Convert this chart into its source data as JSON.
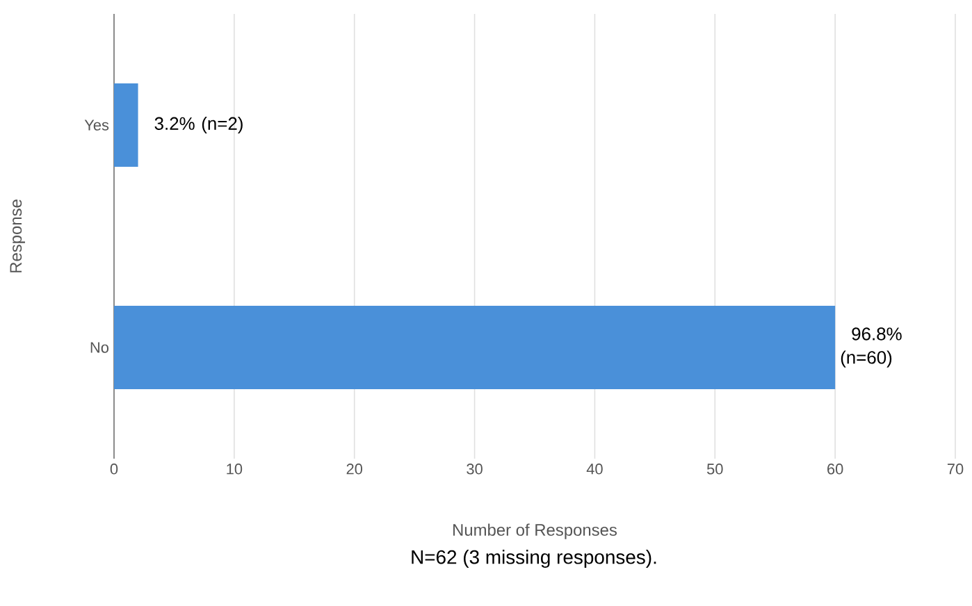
{
  "chart_data": {
    "type": "bar",
    "orientation": "horizontal",
    "categories": [
      "Yes",
      "No"
    ],
    "values": [
      2,
      60
    ],
    "value_labels": [
      "3.2% (n=2)",
      "96.8% (n=60)"
    ],
    "color": "#4a90d9",
    "xlabel": "Number of Responses",
    "ylabel": "Response",
    "xlim": [
      0,
      70
    ],
    "xticks": [
      0,
      10,
      20,
      30,
      40,
      50,
      60,
      70
    ],
    "grid": "x",
    "annotations": [
      "N=62 (3 missing responses)."
    ]
  }
}
